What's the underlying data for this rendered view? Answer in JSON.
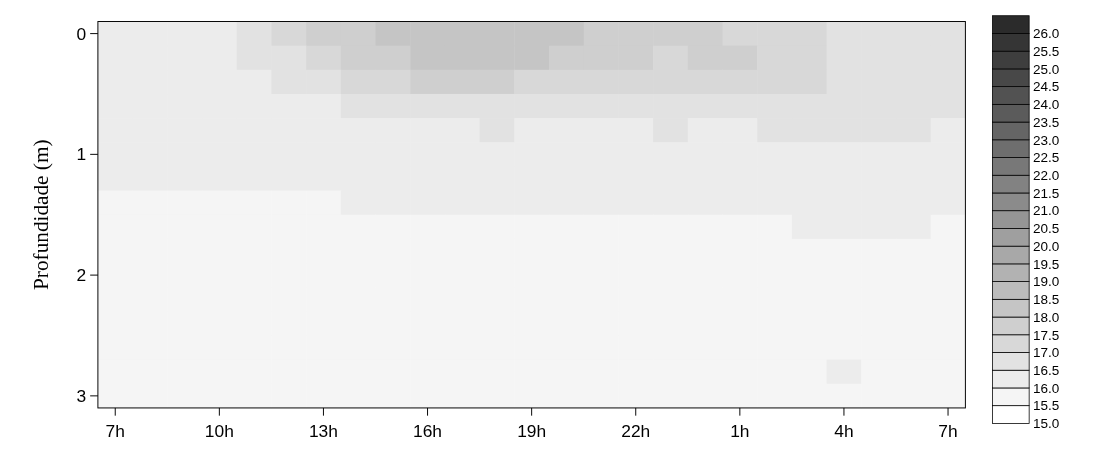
{
  "chart_data": {
    "type": "heatmap",
    "ylabel": "Profundidade (m)",
    "categories": [
      "7h",
      null,
      null,
      "10h",
      null,
      null,
      "13h",
      null,
      null,
      "16h",
      null,
      null,
      "19h",
      null,
      null,
      "22h",
      null,
      null,
      "1h",
      null,
      null,
      "4h",
      null,
      null,
      "7h"
    ],
    "y_categories": [
      "0",
      null,
      null,
      null,
      null,
      "1",
      null,
      null,
      null,
      null,
      "2",
      null,
      null,
      null,
      null,
      "3"
    ],
    "cells": [
      [
        16.25,
        16.25,
        16.25,
        16.25,
        16.75,
        17.25,
        17.75,
        17.75,
        18.25,
        18.25,
        18.25,
        18.25,
        18.25,
        18.25,
        17.75,
        17.75,
        17.75,
        17.75,
        17.25,
        17.25,
        17.25,
        16.75,
        16.75,
        16.75,
        16.75
      ],
      [
        16.25,
        16.25,
        16.25,
        16.25,
        16.75,
        16.75,
        17.25,
        17.75,
        17.75,
        18.25,
        18.25,
        18.25,
        18.25,
        17.75,
        17.75,
        17.75,
        17.25,
        17.75,
        17.75,
        17.25,
        17.25,
        16.75,
        16.75,
        16.75,
        16.75
      ],
      [
        16.25,
        16.25,
        16.25,
        16.25,
        16.25,
        16.75,
        16.75,
        17.25,
        17.25,
        17.75,
        17.75,
        17.75,
        17.25,
        17.25,
        17.25,
        17.25,
        17.25,
        17.25,
        17.25,
        17.25,
        17.25,
        16.75,
        16.75,
        16.75,
        16.75
      ],
      [
        16.25,
        16.25,
        16.25,
        16.25,
        16.25,
        16.25,
        16.25,
        16.75,
        16.75,
        16.75,
        16.75,
        16.75,
        16.75,
        16.75,
        16.75,
        16.75,
        16.75,
        16.75,
        16.75,
        16.75,
        16.75,
        16.75,
        16.75,
        16.75,
        16.75
      ],
      [
        16.25,
        16.25,
        16.25,
        16.25,
        16.25,
        16.25,
        16.25,
        16.25,
        16.25,
        16.25,
        16.25,
        16.75,
        16.25,
        16.25,
        16.25,
        16.25,
        16.75,
        16.25,
        16.25,
        16.75,
        16.75,
        16.75,
        16.75,
        16.75,
        16.25
      ],
      [
        16.25,
        16.25,
        16.25,
        16.25,
        16.25,
        16.25,
        16.25,
        16.25,
        16.25,
        16.25,
        16.25,
        16.25,
        16.25,
        16.25,
        16.25,
        16.25,
        16.25,
        16.25,
        16.25,
        16.25,
        16.25,
        16.25,
        16.25,
        16.25,
        16.25
      ],
      [
        16.25,
        16.25,
        16.25,
        16.25,
        16.25,
        16.25,
        16.25,
        16.25,
        16.25,
        16.25,
        16.25,
        16.25,
        16.25,
        16.25,
        16.25,
        16.25,
        16.25,
        16.25,
        16.25,
        16.25,
        16.25,
        16.25,
        16.25,
        16.25,
        16.25
      ],
      [
        15.75,
        15.75,
        15.75,
        15.75,
        15.75,
        15.75,
        15.75,
        16.25,
        16.25,
        16.25,
        16.25,
        16.25,
        16.25,
        16.25,
        16.25,
        16.25,
        16.25,
        16.25,
        16.25,
        16.25,
        16.25,
        16.25,
        16.25,
        16.25,
        16.25
      ],
      [
        15.75,
        15.75,
        15.75,
        15.75,
        15.75,
        15.75,
        15.75,
        15.75,
        15.75,
        15.75,
        15.75,
        15.75,
        15.75,
        15.75,
        15.75,
        15.75,
        15.75,
        15.75,
        15.75,
        15.75,
        16.25,
        16.25,
        16.25,
        16.25,
        15.75
      ],
      [
        15.75,
        15.75,
        15.75,
        15.75,
        15.75,
        15.75,
        15.75,
        15.75,
        15.75,
        15.75,
        15.75,
        15.75,
        15.75,
        15.75,
        15.75,
        15.75,
        15.75,
        15.75,
        15.75,
        15.75,
        15.75,
        15.75,
        15.75,
        15.75,
        15.75
      ],
      [
        15.75,
        15.75,
        15.75,
        15.75,
        15.75,
        15.75,
        15.75,
        15.75,
        15.75,
        15.75,
        15.75,
        15.75,
        15.75,
        15.75,
        15.75,
        15.75,
        15.75,
        15.75,
        15.75,
        15.75,
        15.75,
        15.75,
        15.75,
        15.75,
        15.75
      ],
      [
        15.75,
        15.75,
        15.75,
        15.75,
        15.75,
        15.75,
        15.75,
        15.75,
        15.75,
        15.75,
        15.75,
        15.75,
        15.75,
        15.75,
        15.75,
        15.75,
        15.75,
        15.75,
        15.75,
        15.75,
        15.75,
        15.75,
        15.75,
        15.75,
        15.75
      ],
      [
        15.75,
        15.75,
        15.75,
        15.75,
        15.75,
        15.75,
        15.75,
        15.75,
        15.75,
        15.75,
        15.75,
        15.75,
        15.75,
        15.75,
        15.75,
        15.75,
        15.75,
        15.75,
        15.75,
        15.75,
        15.75,
        15.75,
        15.75,
        15.75,
        15.75
      ],
      [
        15.75,
        15.75,
        15.75,
        15.75,
        15.75,
        15.75,
        15.75,
        15.75,
        15.75,
        15.75,
        15.75,
        15.75,
        15.75,
        15.75,
        15.75,
        15.75,
        15.75,
        15.75,
        15.75,
        15.75,
        15.75,
        15.75,
        15.75,
        15.75,
        15.75
      ],
      [
        15.75,
        15.75,
        15.75,
        15.75,
        15.75,
        15.75,
        15.75,
        15.75,
        15.75,
        15.75,
        15.75,
        15.75,
        15.75,
        15.75,
        15.75,
        15.75,
        15.75,
        15.75,
        15.75,
        15.75,
        15.75,
        16.25,
        15.75,
        15.75,
        15.75
      ],
      [
        15.75,
        15.75,
        15.75,
        15.75,
        15.75,
        15.75,
        15.75,
        15.75,
        15.75,
        15.75,
        15.75,
        15.75,
        15.75,
        15.75,
        15.75,
        15.75,
        15.75,
        15.75,
        15.75,
        15.75,
        15.75,
        15.75,
        15.75,
        15.75,
        15.75
      ]
    ],
    "clim": [
      15,
      26.5
    ],
    "cticks": [
      {
        "value": 15,
        "label": "15.0"
      },
      {
        "value": 15.5,
        "label": "15.5"
      },
      {
        "value": 16,
        "label": "16.0"
      },
      {
        "value": 16.5,
        "label": "16.5"
      },
      {
        "value": 17,
        "label": "17.0"
      },
      {
        "value": 17.5,
        "label": "17.5"
      },
      {
        "value": 18,
        "label": "18.0"
      },
      {
        "value": 18.5,
        "label": "18.5"
      },
      {
        "value": 19,
        "label": "19.0"
      },
      {
        "value": 19.5,
        "label": "19.5"
      },
      {
        "value": 20,
        "label": "20.0"
      },
      {
        "value": 20.5,
        "label": "20.5"
      },
      {
        "value": 21,
        "label": "21.0"
      },
      {
        "value": 21.5,
        "label": "21.5"
      },
      {
        "value": 22,
        "label": "22.0"
      },
      {
        "value": 22.5,
        "label": "22.5"
      },
      {
        "value": 23,
        "label": "23.0"
      },
      {
        "value": 23.5,
        "label": "23.5"
      },
      {
        "value": 24,
        "label": "24.0"
      },
      {
        "value": 24.5,
        "label": "24.5"
      },
      {
        "value": 25,
        "label": "25.0"
      },
      {
        "value": 25.5,
        "label": "25.5"
      },
      {
        "value": 26,
        "label": "26.0"
      }
    ]
  }
}
